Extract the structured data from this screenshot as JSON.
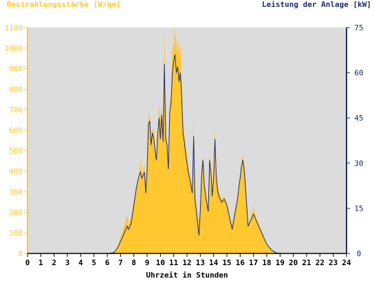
{
  "chart_data": {
    "type": "area",
    "left_axis_label": "Bestrahlungsstärke [W/qm]",
    "right_axis_label": "Leistung der Anlage [kW]",
    "xlabel": "Uhrzeit in Stunden",
    "x_ticks": [
      "0",
      "1",
      "2",
      "3",
      "4",
      "5",
      "6",
      "7",
      "8",
      "9",
      "10",
      "11",
      "12",
      "13",
      "14",
      "15",
      "16",
      "17",
      "18",
      "19",
      "20",
      "21",
      "22",
      "23",
      "24"
    ],
    "y_left_ticks": [
      "0",
      "100",
      "200",
      "300",
      "400",
      "500",
      "600",
      "700",
      "800",
      "900",
      "1000",
      "1100"
    ],
    "y_right_ticks": [
      "0",
      "15",
      "30",
      "45",
      "60",
      "75"
    ],
    "xlim": [
      0,
      24
    ],
    "ylim_left": [
      0,
      1100
    ],
    "ylim_right": [
      0,
      75
    ],
    "colors": {
      "irradiance_fill": "#ffc830",
      "power_line": "#1e2a6e",
      "plot_background": "#dcdcdc",
      "left_axis": "#ffc830",
      "right_axis": "#1e2a6e"
    },
    "series": [
      {
        "name": "Bestrahlungsstärke [W/qm]",
        "axis": "left",
        "style": "area",
        "points": [
          [
            0,
            0
          ],
          [
            6.0,
            0
          ],
          [
            6.4,
            5
          ],
          [
            6.6,
            15
          ],
          [
            6.8,
            40
          ],
          [
            7.0,
            80
          ],
          [
            7.2,
            120
          ],
          [
            7.4,
            160
          ],
          [
            7.5,
            190
          ],
          [
            7.6,
            140
          ],
          [
            7.8,
            180
          ],
          [
            8.0,
            260
          ],
          [
            8.2,
            330
          ],
          [
            8.4,
            390
          ],
          [
            8.5,
            460
          ],
          [
            8.6,
            380
          ],
          [
            8.8,
            440
          ],
          [
            8.9,
            300
          ],
          [
            9.0,
            420
          ],
          [
            9.1,
            660
          ],
          [
            9.2,
            690
          ],
          [
            9.3,
            560
          ],
          [
            9.4,
            600
          ],
          [
            9.5,
            610
          ],
          [
            9.6,
            520
          ],
          [
            9.7,
            470
          ],
          [
            9.8,
            600
          ],
          [
            9.9,
            730
          ],
          [
            10.0,
            650
          ],
          [
            10.1,
            720
          ],
          [
            10.2,
            560
          ],
          [
            10.3,
            1080
          ],
          [
            10.4,
            580
          ],
          [
            10.5,
            560
          ],
          [
            10.6,
            420
          ],
          [
            10.7,
            740
          ],
          [
            10.8,
            760
          ],
          [
            10.9,
            1000
          ],
          [
            11.0,
            1020
          ],
          [
            11.1,
            1100
          ],
          [
            11.2,
            980
          ],
          [
            11.3,
            1060
          ],
          [
            11.4,
            960
          ],
          [
            11.5,
            1020
          ],
          [
            11.6,
            850
          ],
          [
            11.7,
            640
          ],
          [
            11.8,
            580
          ],
          [
            11.9,
            520
          ],
          [
            12.0,
            480
          ],
          [
            12.1,
            420
          ],
          [
            12.2,
            380
          ],
          [
            12.4,
            320
          ],
          [
            12.5,
            640
          ],
          [
            12.6,
            280
          ],
          [
            12.8,
            200
          ],
          [
            12.9,
            150
          ],
          [
            13.0,
            260
          ],
          [
            13.1,
            420
          ],
          [
            13.2,
            480
          ],
          [
            13.3,
            360
          ],
          [
            13.4,
            300
          ],
          [
            13.6,
            220
          ],
          [
            13.7,
            480
          ],
          [
            13.8,
            430
          ],
          [
            13.9,
            300
          ],
          [
            14.0,
            380
          ],
          [
            14.1,
            610
          ],
          [
            14.2,
            400
          ],
          [
            14.3,
            330
          ],
          [
            14.4,
            300
          ],
          [
            14.6,
            260
          ],
          [
            14.8,
            280
          ],
          [
            15.0,
            250
          ],
          [
            15.2,
            180
          ],
          [
            15.4,
            140
          ],
          [
            15.6,
            220
          ],
          [
            15.8,
            280
          ],
          [
            15.9,
            340
          ],
          [
            16.0,
            380
          ],
          [
            16.1,
            420
          ],
          [
            16.2,
            480
          ],
          [
            16.3,
            440
          ],
          [
            16.4,
            350
          ],
          [
            16.6,
            140
          ],
          [
            16.8,
            180
          ],
          [
            17.0,
            220
          ],
          [
            17.2,
            180
          ],
          [
            17.4,
            140
          ],
          [
            17.6,
            110
          ],
          [
            17.8,
            80
          ],
          [
            18.0,
            50
          ],
          [
            18.2,
            30
          ],
          [
            18.4,
            15
          ],
          [
            18.6,
            5
          ],
          [
            18.8,
            0
          ],
          [
            24,
            0
          ]
        ]
      },
      {
        "name": "Leistung der Anlage [kW]",
        "axis": "right",
        "style": "line",
        "points": [
          [
            0,
            0
          ],
          [
            6.1,
            0
          ],
          [
            6.5,
            0.3
          ],
          [
            6.8,
            2
          ],
          [
            7.0,
            4
          ],
          [
            7.2,
            6
          ],
          [
            7.4,
            8
          ],
          [
            7.5,
            9
          ],
          [
            7.6,
            8
          ],
          [
            7.8,
            10
          ],
          [
            8.0,
            16
          ],
          [
            8.2,
            22
          ],
          [
            8.4,
            26
          ],
          [
            8.5,
            27
          ],
          [
            8.6,
            25
          ],
          [
            8.8,
            27
          ],
          [
            8.9,
            20
          ],
          [
            9.0,
            28
          ],
          [
            9.1,
            43
          ],
          [
            9.2,
            44
          ],
          [
            9.3,
            36
          ],
          [
            9.4,
            40
          ],
          [
            9.5,
            38
          ],
          [
            9.6,
            34
          ],
          [
            9.7,
            31
          ],
          [
            9.8,
            40
          ],
          [
            9.9,
            45
          ],
          [
            10.0,
            38
          ],
          [
            10.1,
            46
          ],
          [
            10.2,
            37
          ],
          [
            10.3,
            63
          ],
          [
            10.4,
            38
          ],
          [
            10.5,
            36
          ],
          [
            10.6,
            28
          ],
          [
            10.7,
            47
          ],
          [
            10.8,
            50
          ],
          [
            10.9,
            60
          ],
          [
            11.0,
            64
          ],
          [
            11.1,
            66
          ],
          [
            11.2,
            60
          ],
          [
            11.3,
            62
          ],
          [
            11.4,
            57
          ],
          [
            11.5,
            60
          ],
          [
            11.6,
            52
          ],
          [
            11.7,
            40
          ],
          [
            11.8,
            37
          ],
          [
            11.9,
            33
          ],
          [
            12.0,
            30
          ],
          [
            12.1,
            27
          ],
          [
            12.2,
            25
          ],
          [
            12.4,
            20
          ],
          [
            12.5,
            39
          ],
          [
            12.6,
            18
          ],
          [
            12.8,
            10
          ],
          [
            12.9,
            6
          ],
          [
            13.0,
            14
          ],
          [
            13.1,
            26
          ],
          [
            13.2,
            31
          ],
          [
            13.3,
            23
          ],
          [
            13.4,
            19
          ],
          [
            13.6,
            14
          ],
          [
            13.7,
            31
          ],
          [
            13.8,
            27
          ],
          [
            13.9,
            19
          ],
          [
            14.0,
            25
          ],
          [
            14.1,
            38
          ],
          [
            14.2,
            26
          ],
          [
            14.3,
            21
          ],
          [
            14.4,
            19
          ],
          [
            14.6,
            17
          ],
          [
            14.8,
            18
          ],
          [
            15.0,
            16
          ],
          [
            15.2,
            12
          ],
          [
            15.4,
            8
          ],
          [
            15.6,
            13
          ],
          [
            15.8,
            18
          ],
          [
            15.9,
            22
          ],
          [
            16.0,
            25
          ],
          [
            16.1,
            29
          ],
          [
            16.2,
            31
          ],
          [
            16.3,
            28
          ],
          [
            16.4,
            22
          ],
          [
            16.6,
            9
          ],
          [
            16.8,
            11
          ],
          [
            17.0,
            13
          ],
          [
            17.2,
            11
          ],
          [
            17.4,
            9
          ],
          [
            17.6,
            7
          ],
          [
            17.8,
            5
          ],
          [
            18.0,
            3
          ],
          [
            18.2,
            2
          ],
          [
            18.4,
            1
          ],
          [
            18.7,
            0.2
          ],
          [
            19.0,
            0
          ],
          [
            24,
            0
          ]
        ]
      }
    ]
  }
}
